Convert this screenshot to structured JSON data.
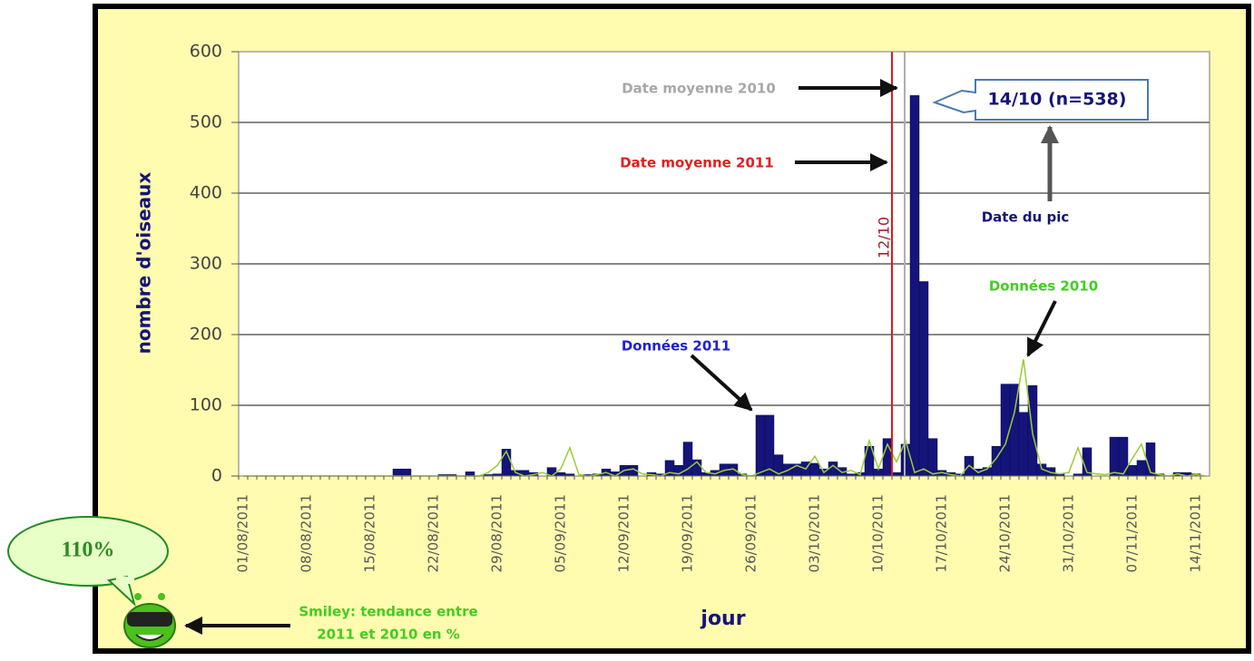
{
  "chart_data": {
    "type": "bar",
    "y_axis_label": "nombre d'oiseaux",
    "x_axis_label": "jour",
    "categories": [
      "01/08/2011",
      null,
      null,
      null,
      null,
      null,
      null,
      "08/08/2011",
      null,
      null,
      null,
      null,
      null,
      null,
      "15/08/2011",
      null,
      null,
      null,
      null,
      null,
      null,
      "22/08/2011",
      null,
      null,
      null,
      null,
      null,
      null,
      "29/08/2011",
      null,
      null,
      null,
      null,
      null,
      null,
      "05/09/2011",
      null,
      null,
      null,
      null,
      null,
      null,
      "12/09/2011",
      null,
      null,
      null,
      null,
      null,
      null,
      "19/09/2011",
      null,
      null,
      null,
      null,
      null,
      null,
      "26/09/2011",
      null,
      null,
      null,
      null,
      null,
      null,
      "03/10/2011",
      null,
      null,
      null,
      null,
      null,
      null,
      "10/10/2011",
      null,
      null,
      null,
      null,
      null,
      null,
      "17/10/2011",
      null,
      null,
      null,
      null,
      null,
      null,
      "24/10/2011",
      null,
      null,
      null,
      null,
      null,
      null,
      "31/10/2011",
      null,
      null,
      null,
      null,
      null,
      null,
      "07/11/2011",
      null,
      null,
      null,
      null,
      null,
      null,
      "14/11/2011",
      null
    ],
    "series": [
      {
        "name": "Données 2011",
        "color": "#14147a",
        "values": [
          0,
          0,
          0,
          0,
          0,
          0,
          0,
          0,
          0,
          0,
          0,
          0,
          0,
          0,
          0,
          0,
          0,
          10,
          10,
          0,
          0,
          0,
          2,
          2,
          0,
          6,
          0,
          2,
          3,
          38,
          8,
          8,
          5,
          0,
          12,
          5,
          3,
          0,
          2,
          3,
          10,
          6,
          15,
          15,
          0,
          5,
          3,
          22,
          15,
          48,
          23,
          5,
          8,
          17,
          17,
          3,
          0,
          86,
          86,
          30,
          17,
          17,
          20,
          18,
          10,
          20,
          12,
          3,
          5,
          42,
          10,
          53,
          5,
          45,
          538,
          275,
          53,
          8,
          5,
          3,
          28,
          10,
          12,
          42,
          130,
          130,
          90,
          128,
          17,
          12,
          3,
          0,
          3,
          40,
          0,
          0,
          55,
          55,
          15,
          22,
          47,
          3,
          0,
          5,
          5,
          3,
          0
        ]
      },
      {
        "name": "Données 2010",
        "color": "#9acd32",
        "values": [
          0,
          0,
          0,
          0,
          0,
          0,
          0,
          0,
          0,
          0,
          0,
          0,
          0,
          0,
          0,
          0,
          0,
          0,
          0,
          0,
          0,
          0,
          0,
          0,
          0,
          0,
          0,
          5,
          15,
          35,
          5,
          0,
          2,
          5,
          0,
          10,
          40,
          2,
          0,
          2,
          5,
          0,
          8,
          10,
          3,
          2,
          0,
          5,
          3,
          10,
          20,
          5,
          3,
          8,
          10,
          2,
          0,
          5,
          10,
          3,
          8,
          15,
          10,
          28,
          5,
          15,
          5,
          8,
          2,
          50,
          10,
          45,
          20,
          50,
          5,
          10,
          3,
          5,
          2,
          0,
          15,
          5,
          10,
          25,
          45,
          90,
          165,
          60,
          10,
          5,
          3,
          5,
          40,
          5,
          3,
          2,
          5,
          3,
          25,
          45,
          5,
          2,
          0,
          3,
          0,
          2,
          0
        ]
      }
    ],
    "ylim": [
      0,
      600
    ],
    "yticks": [
      0,
      100,
      200,
      300,
      400,
      500,
      600
    ],
    "grid": true,
    "reference_lines": [
      {
        "label": "Date moyenne 2010",
        "x": 73.4,
        "color": "#b0b0b0"
      },
      {
        "label": "Date moyenne 2011",
        "x": 72,
        "color": "#d02020",
        "tag": "12/10"
      }
    ],
    "peak_label": "14/10 (n=538)",
    "peak_note": "Date du pic",
    "trend": "110%",
    "trend_note": [
      "Smiley: tendance entre",
      "2011 et 2010 en %"
    ]
  }
}
